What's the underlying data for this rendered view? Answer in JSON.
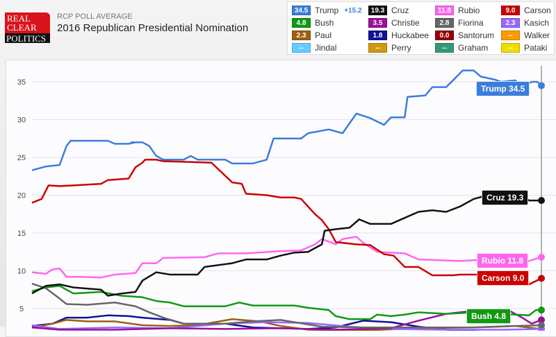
{
  "header": {
    "logo_text": [
      "REAL",
      "CLEAR",
      "POLITICS"
    ],
    "subtitle": "RCP POLL AVERAGE",
    "title": "2016 Republican Presidential Nomination"
  },
  "legend": [
    {
      "name": "Trump",
      "value": "34.5",
      "color": "#3b7ddd",
      "change": "+15.2"
    },
    {
      "name": "Cruz",
      "value": "19.3",
      "color": "#111111"
    },
    {
      "name": "Rubio",
      "value": "11.8",
      "color": "#ff66ee"
    },
    {
      "name": "Carson",
      "value": "9.0",
      "color": "#cc0000"
    },
    {
      "name": "Bush",
      "value": "4.8",
      "color": "#119911"
    },
    {
      "name": "Christie",
      "value": "3.5",
      "color": "#991199"
    },
    {
      "name": "Fiorina",
      "value": "2.8",
      "color": "#666666"
    },
    {
      "name": "Kasich",
      "value": "2.3",
      "color": "#9966ff"
    },
    {
      "name": "Paul",
      "value": "2.3",
      "color": "#996011"
    },
    {
      "name": "Huckabee",
      "value": "1.8",
      "color": "#111199"
    },
    {
      "name": "Santorum",
      "value": "0.0",
      "color": "#990000"
    },
    {
      "name": "Walker",
      "value": "--",
      "color": "#ff9900"
    },
    {
      "name": "Jindal",
      "value": "--",
      "color": "#66ccff"
    },
    {
      "name": "Perry",
      "value": "--",
      "color": "#cc9911"
    },
    {
      "name": "Graham",
      "value": "--",
      "color": "#339977"
    },
    {
      "name": "Pataki",
      "value": "--",
      "color": "#eedd00"
    }
  ],
  "chart_data": {
    "type": "line",
    "title": "2016 Republican Presidential Nomination",
    "xlabel": "",
    "ylabel": "",
    "ylim": [
      0,
      37
    ],
    "xlim": [
      0,
      369
    ],
    "yticks": [
      "5",
      "10",
      "15",
      "20",
      "25",
      "30",
      "35"
    ],
    "grid": true,
    "end_labels": [
      {
        "name": "Trump",
        "text": "Trump 34.5"
      },
      {
        "name": "Cruz",
        "text": "Cruz 19.3"
      },
      {
        "name": "Rubio",
        "text": "Rubio 11.8"
      },
      {
        "name": "Carson",
        "text": "Carson 9.0"
      },
      {
        "name": "Bush",
        "text": "Bush 4.8"
      }
    ],
    "series": [
      {
        "name": "Trump",
        "color": "#3b7ddd",
        "points": [
          [
            0,
            23.3
          ],
          [
            10,
            23.8
          ],
          [
            20,
            24
          ],
          [
            25,
            26.5
          ],
          [
            28,
            27.2
          ],
          [
            55,
            27.2
          ],
          [
            60,
            26.8
          ],
          [
            70,
            26.8
          ],
          [
            75,
            27
          ],
          [
            72,
            27
          ],
          [
            80,
            27
          ],
          [
            85,
            26.5
          ],
          [
            90,
            25.2
          ],
          [
            95,
            24.7
          ],
          [
            110,
            24.7
          ],
          [
            115,
            25.2
          ],
          [
            120,
            24.7
          ],
          [
            140,
            24.7
          ],
          [
            145,
            24.2
          ],
          [
            160,
            24.2
          ],
          [
            170,
            24.7
          ],
          [
            175,
            27.5
          ],
          [
            195,
            27.5
          ],
          [
            200,
            28.2
          ],
          [
            215,
            28.7
          ],
          [
            225,
            28.2
          ],
          [
            235,
            30.8
          ],
          [
            245,
            30.2
          ],
          [
            255,
            29.3
          ],
          [
            260,
            30.3
          ],
          [
            270,
            30.3
          ],
          [
            272,
            33
          ],
          [
            285,
            33.2
          ],
          [
            290,
            34.3
          ],
          [
            300,
            34.3
          ],
          [
            305,
            35.2
          ],
          [
            312,
            36.5
          ],
          [
            320,
            36.5
          ],
          [
            325,
            35.7
          ],
          [
            335,
            35.3
          ],
          [
            340,
            35
          ],
          [
            350,
            35.2
          ],
          [
            355,
            34.3
          ],
          [
            362,
            35
          ],
          [
            366,
            35
          ],
          [
            369,
            34.5
          ]
        ]
      },
      {
        "name": "Cruz",
        "color": "#111111",
        "points": [
          [
            0,
            7
          ],
          [
            10,
            8
          ],
          [
            20,
            8.2
          ],
          [
            30,
            7.8
          ],
          [
            50,
            7.5
          ],
          [
            55,
            6.7
          ],
          [
            65,
            7
          ],
          [
            75,
            7.2
          ],
          [
            80,
            8.7
          ],
          [
            90,
            9.8
          ],
          [
            100,
            9.5
          ],
          [
            120,
            9.5
          ],
          [
            125,
            10.5
          ],
          [
            145,
            11
          ],
          [
            155,
            11.5
          ],
          [
            170,
            11.5
          ],
          [
            180,
            12
          ],
          [
            190,
            12.4
          ],
          [
            200,
            12.5
          ],
          [
            210,
            13.5
          ],
          [
            212,
            15.3
          ],
          [
            220,
            15.5
          ],
          [
            230,
            15.7
          ],
          [
            237,
            16.8
          ],
          [
            245,
            16.2
          ],
          [
            260,
            16.2
          ],
          [
            270,
            17
          ],
          [
            280,
            17.8
          ],
          [
            290,
            18
          ],
          [
            300,
            17.8
          ],
          [
            310,
            18.5
          ],
          [
            320,
            19.5
          ],
          [
            330,
            20
          ],
          [
            355,
            20
          ],
          [
            360,
            19.3
          ],
          [
            369,
            19.3
          ]
        ]
      },
      {
        "name": "Carson",
        "color": "#cc0000",
        "points": [
          [
            0,
            19
          ],
          [
            7,
            19.5
          ],
          [
            12,
            21.3
          ],
          [
            20,
            21.2
          ],
          [
            30,
            21.3
          ],
          [
            50,
            21.5
          ],
          [
            55,
            22
          ],
          [
            70,
            22.2
          ],
          [
            75,
            23.7
          ],
          [
            80,
            24.3
          ],
          [
            82,
            24.7
          ],
          [
            90,
            24.7
          ],
          [
            95,
            24.5
          ],
          [
            130,
            24.3
          ],
          [
            145,
            21.7
          ],
          [
            152,
            21.5
          ],
          [
            155,
            20.2
          ],
          [
            170,
            20
          ],
          [
            180,
            19.7
          ],
          [
            190,
            19.7
          ],
          [
            195,
            19.5
          ],
          [
            200,
            18.5
          ],
          [
            205,
            17.5
          ],
          [
            210,
            16.7
          ],
          [
            215,
            15.5
          ],
          [
            220,
            13.8
          ],
          [
            235,
            13.5
          ],
          [
            245,
            13.4
          ],
          [
            255,
            12.2
          ],
          [
            262,
            12
          ],
          [
            270,
            10.5
          ],
          [
            280,
            10.5
          ],
          [
            290,
            9.4
          ],
          [
            305,
            9.4
          ],
          [
            310,
            9.5
          ],
          [
            345,
            9.5
          ],
          [
            350,
            8.2
          ],
          [
            360,
            8.2
          ],
          [
            369,
            9
          ]
        ]
      },
      {
        "name": "Rubio",
        "color": "#ff66ee",
        "points": [
          [
            0,
            9.8
          ],
          [
            10,
            9.6
          ],
          [
            15,
            10.2
          ],
          [
            20,
            10.3
          ],
          [
            25,
            9.2
          ],
          [
            35,
            9.2
          ],
          [
            50,
            9.1
          ],
          [
            60,
            9.5
          ],
          [
            75,
            9.7
          ],
          [
            80,
            11
          ],
          [
            90,
            11
          ],
          [
            95,
            11.7
          ],
          [
            125,
            11.8
          ],
          [
            135,
            12.3
          ],
          [
            155,
            12.3
          ],
          [
            180,
            12.6
          ],
          [
            195,
            12.7
          ],
          [
            205,
            13.5
          ],
          [
            210,
            14.2
          ],
          [
            220,
            13.5
          ],
          [
            225,
            14.2
          ],
          [
            235,
            14.5
          ],
          [
            240,
            13.7
          ],
          [
            250,
            12.5
          ],
          [
            270,
            12.3
          ],
          [
            280,
            11.5
          ],
          [
            310,
            11.3
          ],
          [
            330,
            11.5
          ],
          [
            360,
            11.3
          ],
          [
            369,
            11.8
          ]
        ]
      },
      {
        "name": "Bush",
        "color": "#119911",
        "points": [
          [
            0,
            7.3
          ],
          [
            10,
            7.8
          ],
          [
            20,
            8
          ],
          [
            30,
            7
          ],
          [
            50,
            7.2
          ],
          [
            65,
            6.7
          ],
          [
            80,
            6.5
          ],
          [
            90,
            6
          ],
          [
            100,
            5.8
          ],
          [
            110,
            5.3
          ],
          [
            140,
            5.3
          ],
          [
            150,
            5.8
          ],
          [
            160,
            5.4
          ],
          [
            190,
            5.4
          ],
          [
            200,
            5.1
          ],
          [
            215,
            4.8
          ],
          [
            220,
            4
          ],
          [
            230,
            3.6
          ],
          [
            245,
            3.6
          ],
          [
            250,
            4.2
          ],
          [
            260,
            4
          ],
          [
            270,
            4.2
          ],
          [
            280,
            4.5
          ],
          [
            300,
            4.3
          ],
          [
            320,
            4.5
          ],
          [
            340,
            4.3
          ],
          [
            360,
            4.1
          ],
          [
            365,
            4.8
          ],
          [
            369,
            4.8
          ]
        ]
      },
      {
        "name": "Fiorina",
        "color": "#666666",
        "points": [
          [
            0,
            8.3
          ],
          [
            10,
            7.7
          ],
          [
            18,
            6.6
          ],
          [
            25,
            5.6
          ],
          [
            40,
            5.5
          ],
          [
            60,
            5.8
          ],
          [
            75,
            5.3
          ],
          [
            85,
            4.5
          ],
          [
            95,
            3.8
          ],
          [
            110,
            3
          ],
          [
            140,
            3
          ],
          [
            160,
            3.3
          ],
          [
            180,
            3.5
          ],
          [
            190,
            3.2
          ],
          [
            210,
            2.6
          ],
          [
            240,
            2.5
          ],
          [
            280,
            2.5
          ],
          [
            320,
            2.5
          ],
          [
            350,
            2.7
          ],
          [
            369,
            2.8
          ]
        ]
      },
      {
        "name": "Christie",
        "color": "#991199",
        "points": [
          [
            0,
            2.5
          ],
          [
            20,
            2.2
          ],
          [
            60,
            2.2
          ],
          [
            100,
            2.4
          ],
          [
            140,
            2.3
          ],
          [
            180,
            2.4
          ],
          [
            220,
            2.2
          ],
          [
            260,
            2.4
          ],
          [
            280,
            3.4
          ],
          [
            300,
            4.3
          ],
          [
            320,
            4.7
          ],
          [
            345,
            4.8
          ],
          [
            355,
            3.8
          ],
          [
            362,
            3
          ],
          [
            369,
            3.5
          ]
        ]
      },
      {
        "name": "Kasich",
        "color": "#9966ff",
        "points": [
          [
            0,
            2.8
          ],
          [
            20,
            2.3
          ],
          [
            60,
            2.5
          ],
          [
            100,
            2.4
          ],
          [
            140,
            3
          ],
          [
            170,
            3.2
          ],
          [
            200,
            3.1
          ],
          [
            230,
            2.6
          ],
          [
            260,
            2.3
          ],
          [
            300,
            2.2
          ],
          [
            340,
            2.2
          ],
          [
            369,
            2.3
          ]
        ]
      },
      {
        "name": "Paul",
        "color": "#996011",
        "points": [
          [
            0,
            2.5
          ],
          [
            15,
            3
          ],
          [
            25,
            3.5
          ],
          [
            40,
            3.3
          ],
          [
            60,
            3.3
          ],
          [
            80,
            2.8
          ],
          [
            100,
            2.7
          ],
          [
            120,
            2.8
          ],
          [
            145,
            3.6
          ],
          [
            165,
            3.3
          ],
          [
            180,
            2.7
          ],
          [
            200,
            2.2
          ],
          [
            240,
            2.1
          ],
          [
            280,
            2.4
          ],
          [
            320,
            2.5
          ],
          [
            350,
            2.7
          ],
          [
            369,
            2.3
          ]
        ]
      },
      {
        "name": "Huckabee",
        "color": "#111199",
        "points": [
          [
            0,
            2.7
          ],
          [
            15,
            3
          ],
          [
            25,
            3.8
          ],
          [
            40,
            3.8
          ],
          [
            55,
            4.1
          ],
          [
            70,
            4
          ],
          [
            80,
            3.8
          ],
          [
            100,
            3.5
          ],
          [
            110,
            3
          ],
          [
            140,
            3
          ],
          [
            160,
            2.5
          ],
          [
            180,
            2.4
          ],
          [
            200,
            2.3
          ],
          [
            220,
            2.5
          ],
          [
            240,
            3.4
          ],
          [
            260,
            3.2
          ],
          [
            280,
            2.6
          ],
          [
            300,
            2.2
          ],
          [
            330,
            1.9
          ],
          [
            369,
            1.8
          ]
        ]
      }
    ]
  }
}
